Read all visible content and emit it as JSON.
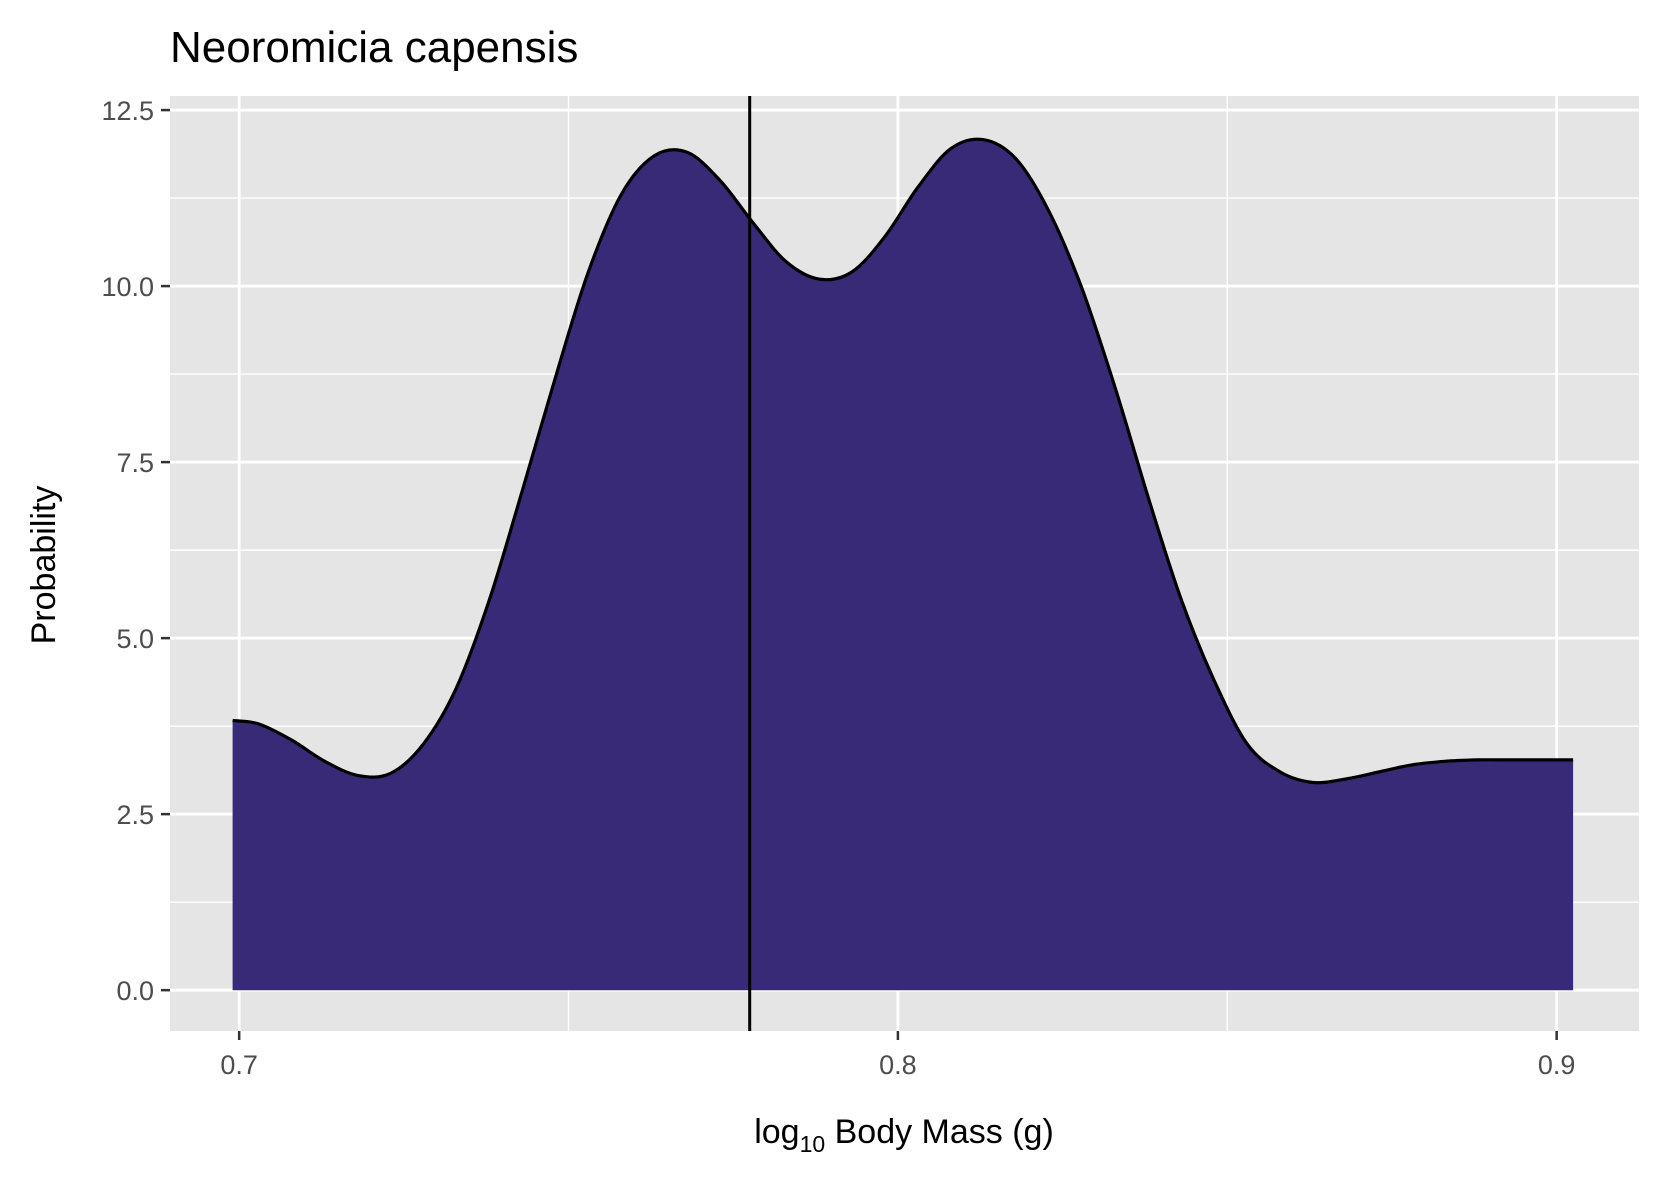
{
  "chart_data": {
    "type": "area",
    "title": "Neoromicia capensis",
    "xlabel": {
      "prefix": "log",
      "subscript": "10",
      "suffix": " Body Mass (g)"
    },
    "ylabel": "Probability",
    "xlim": [
      0.6895,
      0.9125
    ],
    "ylim": [
      -0.58,
      12.7
    ],
    "x_ticks": [
      0.7,
      0.8,
      0.9
    ],
    "x_tick_labels": [
      "0.7",
      "0.8",
      "0.9"
    ],
    "x_minor_ticks": [
      0.75,
      0.85
    ],
    "y_ticks": [
      0,
      2.5,
      5,
      7.5,
      10,
      12.5
    ],
    "y_tick_labels": [
      "0.0",
      "2.5",
      "5.0",
      "7.5",
      "10.0",
      "12.5"
    ],
    "y_minor_ticks": [
      1.25,
      3.75,
      6.25,
      8.75,
      11.25
    ],
    "grid": true,
    "vline_x": 0.7775,
    "colors": {
      "fill": "#382a77",
      "line": "#000000",
      "panel": "#e5e5e5",
      "grid": "#ffffff"
    },
    "series": [
      {
        "x": [
          0.699,
          0.703,
          0.708,
          0.713,
          0.718,
          0.723,
          0.728,
          0.733,
          0.738,
          0.743,
          0.748,
          0.753,
          0.758,
          0.763,
          0.768,
          0.773,
          0.778,
          0.783,
          0.788,
          0.793,
          0.798,
          0.803,
          0.808,
          0.813,
          0.818,
          0.823,
          0.828,
          0.833,
          0.838,
          0.843,
          0.848,
          0.853,
          0.858,
          0.863,
          0.868,
          0.873,
          0.878,
          0.883,
          0.888,
          0.893,
          0.898,
          0.9025
        ],
        "y": [
          3.83,
          3.78,
          3.55,
          3.25,
          3.05,
          3.08,
          3.5,
          4.3,
          5.55,
          7.1,
          8.7,
          10.2,
          11.3,
          11.85,
          11.9,
          11.5,
          10.9,
          10.35,
          10.1,
          10.2,
          10.7,
          11.4,
          11.95,
          12.08,
          11.8,
          11.05,
          9.95,
          8.55,
          7.0,
          5.55,
          4.4,
          3.5,
          3.1,
          2.95,
          3.0,
          3.1,
          3.2,
          3.25,
          3.27,
          3.27,
          3.27,
          3.27
        ]
      }
    ]
  }
}
